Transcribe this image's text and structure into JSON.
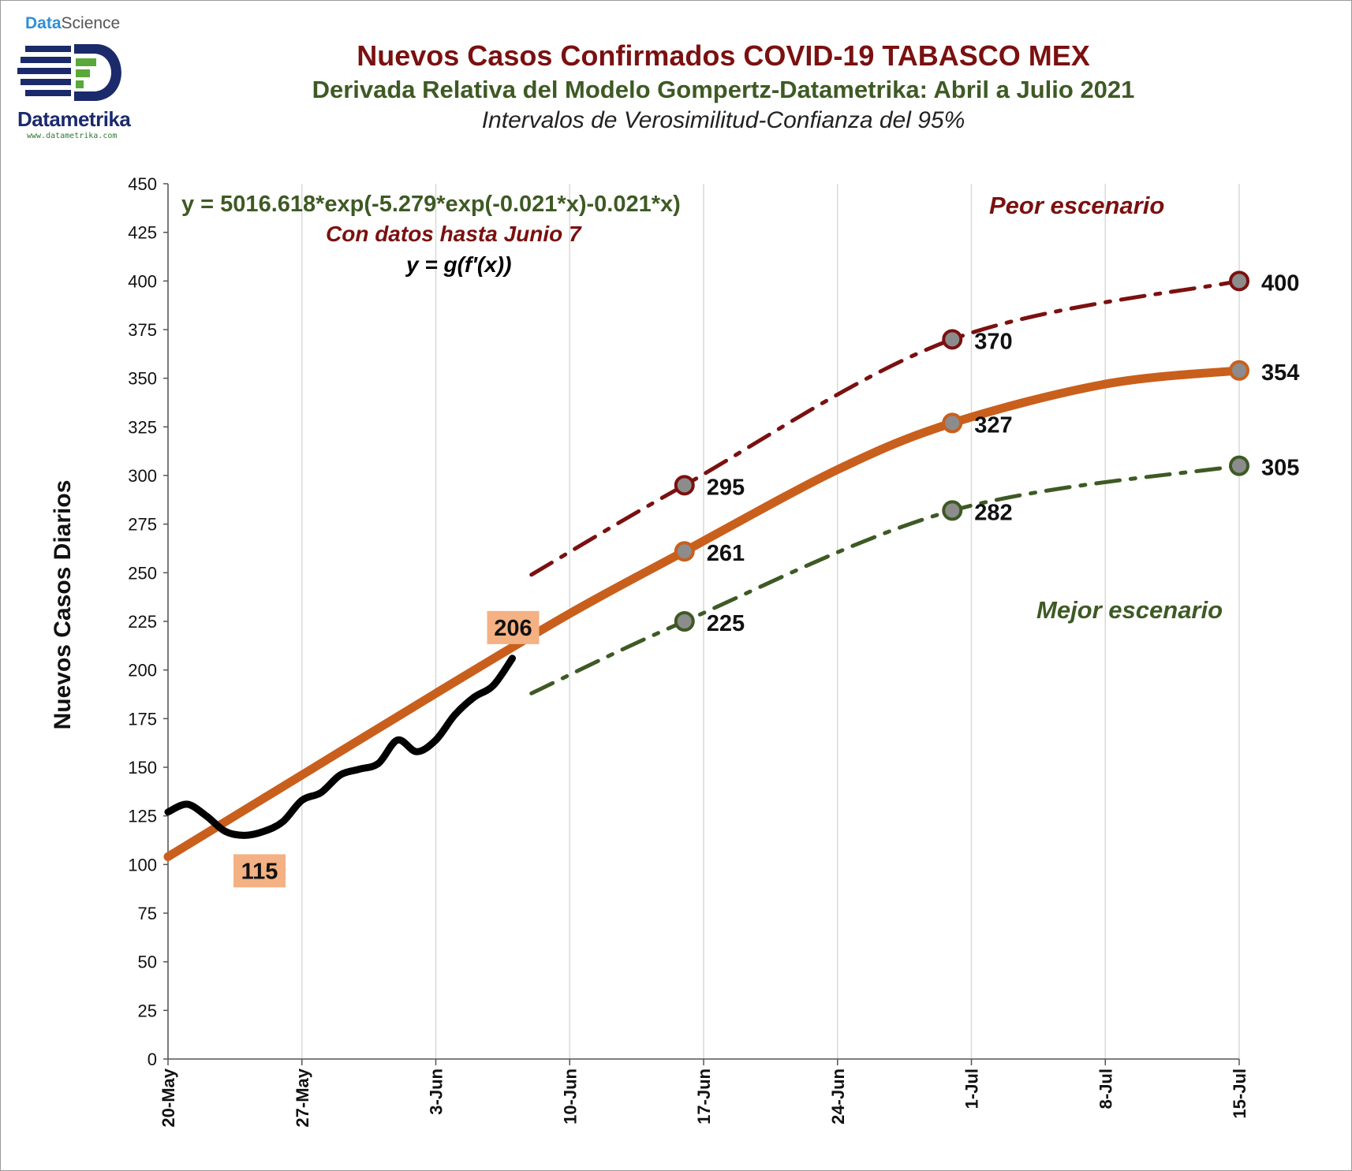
{
  "logo": {
    "top_word_1": "Data",
    "top_word_2": "Science",
    "name": "Datametrika",
    "url": "www.datametrika.com"
  },
  "chart_data": {
    "type": "line",
    "title": "Nuevos Casos Confirmados COVID-19 TABASCO MEX",
    "subtitle": "Derivada Relativa del Modelo Gompertz-Datametrika: Abril a Julio 2021",
    "subtitle2": "Intervalos de Verosimilitud-Confianza del 95%",
    "xlabel": "",
    "ylabel": "Nuevos Casos Diarios",
    "ylim": [
      0,
      450
    ],
    "yticks": [
      0,
      25,
      50,
      75,
      100,
      125,
      150,
      175,
      200,
      225,
      250,
      275,
      300,
      325,
      350,
      375,
      400,
      425,
      450
    ],
    "xlim": [
      "2021-05-20",
      "2021-07-15"
    ],
    "xticks": [
      {
        "date": "2021-05-20",
        "label": "20-May"
      },
      {
        "date": "2021-05-27",
        "label": "27-May"
      },
      {
        "date": "2021-06-03",
        "label": "3-Jun"
      },
      {
        "date": "2021-06-10",
        "label": "10-Jun"
      },
      {
        "date": "2021-06-17",
        "label": "17-Jun"
      },
      {
        "date": "2021-06-24",
        "label": "24-Jun"
      },
      {
        "date": "2021-07-01",
        "label": "1-Jul"
      },
      {
        "date": "2021-07-08",
        "label": "8-Jul"
      },
      {
        "date": "2021-07-15",
        "label": "15-Jul"
      }
    ],
    "grid": "vertical",
    "annotations": {
      "equation": "y = 5016.618*exp(-5.279*exp(-0.021*x)-0.021*x)",
      "data_note": "Con datos hasta Junio 7",
      "formula": "y = g(f'(x))",
      "worst": "Peor escenario",
      "best": "Mejor escenario"
    },
    "series": [
      {
        "role": "observed",
        "color": "#000000",
        "points": [
          {
            "x": "2021-05-20",
            "y": 127
          },
          {
            "x": "2021-05-21",
            "y": 131
          },
          {
            "x": "2021-05-22",
            "y": 125
          },
          {
            "x": "2021-05-23",
            "y": 117
          },
          {
            "x": "2021-05-24",
            "y": 115
          },
          {
            "x": "2021-05-25",
            "y": 117
          },
          {
            "x": "2021-05-26",
            "y": 122
          },
          {
            "x": "2021-05-27",
            "y": 133
          },
          {
            "x": "2021-05-28",
            "y": 137
          },
          {
            "x": "2021-05-29",
            "y": 146
          },
          {
            "x": "2021-05-30",
            "y": 149
          },
          {
            "x": "2021-05-31",
            "y": 152
          },
          {
            "x": "2021-06-01",
            "y": 164
          },
          {
            "x": "2021-06-02",
            "y": 158
          },
          {
            "x": "2021-06-03",
            "y": 164
          },
          {
            "x": "2021-06-04",
            "y": 177
          },
          {
            "x": "2021-06-05",
            "y": 186
          },
          {
            "x": "2021-06-06",
            "y": 192
          },
          {
            "x": "2021-06-07",
            "y": 206
          }
        ],
        "point_labels": [
          {
            "x": "2021-05-24",
            "y": 115,
            "label": "115"
          },
          {
            "x": "2021-06-07",
            "y": 206,
            "label": "206"
          }
        ]
      },
      {
        "role": "model",
        "color": "#c95f1c",
        "points": [
          {
            "x": "2021-05-20",
            "y": 104
          },
          {
            "x": "2021-05-27",
            "y": 146
          },
          {
            "x": "2021-06-03",
            "y": 188
          },
          {
            "x": "2021-06-10",
            "y": 229
          },
          {
            "x": "2021-06-16",
            "y": 261
          },
          {
            "x": "2021-06-24",
            "y": 303
          },
          {
            "x": "2021-06-30",
            "y": 327
          },
          {
            "x": "2021-07-08",
            "y": 347
          },
          {
            "x": "2021-07-15",
            "y": 354
          }
        ],
        "point_labels": [
          {
            "x": "2021-06-16",
            "y": 261,
            "label": "261"
          },
          {
            "x": "2021-06-30",
            "y": 327,
            "label": "327"
          },
          {
            "x": "2021-07-15",
            "y": 354,
            "label": "354"
          }
        ]
      },
      {
        "role": "upper",
        "color": "#7b1010",
        "points": [
          {
            "x": "2021-06-08",
            "y": 249
          },
          {
            "x": "2021-06-16",
            "y": 295
          },
          {
            "x": "2021-06-30",
            "y": 370
          },
          {
            "x": "2021-07-15",
            "y": 400
          }
        ],
        "point_labels": [
          {
            "x": "2021-06-16",
            "y": 295,
            "label": "295"
          },
          {
            "x": "2021-06-30",
            "y": 370,
            "label": "370"
          },
          {
            "x": "2021-07-15",
            "y": 400,
            "label": "400"
          }
        ]
      },
      {
        "role": "lower",
        "color": "#3e5a24",
        "points": [
          {
            "x": "2021-06-08",
            "y": 188
          },
          {
            "x": "2021-06-16",
            "y": 225
          },
          {
            "x": "2021-06-30",
            "y": 282
          },
          {
            "x": "2021-07-15",
            "y": 305
          }
        ],
        "point_labels": [
          {
            "x": "2021-06-16",
            "y": 225,
            "label": "225"
          },
          {
            "x": "2021-06-30",
            "y": 282,
            "label": "282"
          },
          {
            "x": "2021-07-15",
            "y": 305,
            "label": "305"
          }
        ]
      }
    ]
  }
}
